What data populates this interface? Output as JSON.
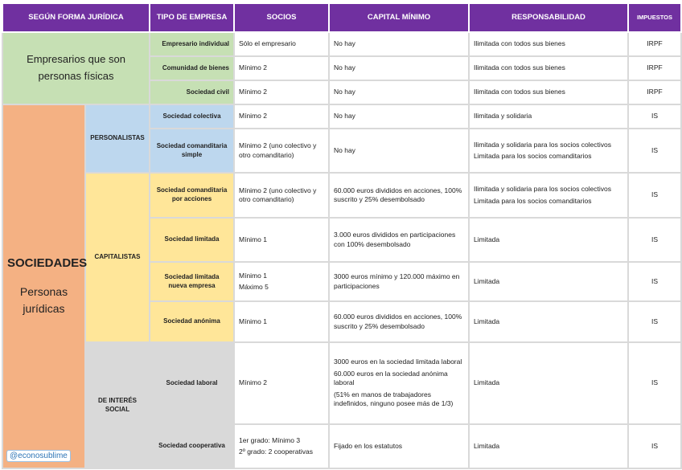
{
  "headers": [
    "SEGÚN FORMA JURÍDICA",
    "TIPO DE EMPRESA",
    "SOCIOS",
    "CAPITAL MÍNIMO",
    "RESPONSABILIDAD",
    "IMPUESTOS"
  ],
  "persona_fisica": "Empresarios que son personas físicas",
  "sociedades": {
    "title": "SOCIEDADES",
    "subtitle": "Personas jurídicas"
  },
  "groups": {
    "personalistas": "PERSONALISTAS",
    "capitalistas": "CAPITALISTAS",
    "interes_social": "DE INTERÉS SOCIAL"
  },
  "rows": [
    {
      "tipo": "Empresario individual",
      "socios": [
        "Sólo el empresario"
      ],
      "capital": [
        "No hay"
      ],
      "resp": [
        "Ilimitada con todos sus bienes"
      ],
      "imp": "IRPF"
    },
    {
      "tipo": "Comunidad de bienes",
      "socios": [
        "Mínimo 2"
      ],
      "capital": [
        "No hay"
      ],
      "resp": [
        "Ilimitada con todos sus bienes"
      ],
      "imp": "IRPF"
    },
    {
      "tipo": "Sociedad civil",
      "socios": [
        "Mínimo 2"
      ],
      "capital": [
        "No hay"
      ],
      "resp": [
        "Ilimitada con todos sus bienes"
      ],
      "imp": "IRPF"
    },
    {
      "tipo": "Sociedad colectiva",
      "socios": [
        "Mínimo 2"
      ],
      "capital": [
        "No hay"
      ],
      "resp": [
        "Ilimitada y solidaria"
      ],
      "imp": "IS"
    },
    {
      "tipo": "Sociedad comanditaria simple",
      "socios": [
        "Mínimo 2 (uno colectivo y otro comanditario)"
      ],
      "capital": [
        "No hay"
      ],
      "resp": [
        "Ilimitada y solidaria para los socios colectivos",
        "Limitada para los socios comanditarios"
      ],
      "imp": "IS"
    },
    {
      "tipo": "Sociedad comanditaria por acciones",
      "socios": [
        "Mínimo 2 (uno colectivo y otro comanditario)"
      ],
      "capital": [
        "60.000 euros divididos en acciones, 100% suscrito y 25% desembolsado"
      ],
      "resp": [
        "Ilimitada y solidaria para los socios colectivos",
        "Limitada para los socios comanditarios"
      ],
      "imp": "IS"
    },
    {
      "tipo": "Sociedad limitada",
      "socios": [
        "Mínimo 1"
      ],
      "capital": [
        "3.000 euros divididos en participaciones con 100% desembolsado"
      ],
      "resp": [
        "Limitada"
      ],
      "imp": "IS"
    },
    {
      "tipo": "Sociedad limitada nueva empresa",
      "socios": [
        "Mínimo 1",
        "Máximo 5"
      ],
      "capital": [
        "3000 euros mínimo y 120.000 máximo en participaciones"
      ],
      "resp": [
        "Limitada"
      ],
      "imp": "IS"
    },
    {
      "tipo": "Sociedad anónima",
      "socios": [
        "Mínimo 1"
      ],
      "capital": [
        "60.000 euros divididos en acciones, 100% suscrito y 25% desembolsado"
      ],
      "resp": [
        "Limitada"
      ],
      "imp": "IS"
    },
    {
      "tipo": "Sociedad laboral",
      "socios": [
        "Mínimo 2"
      ],
      "capital": [
        "3000 euros en la sociedad limitada laboral",
        "60.000 euros en la sociedad anónima laboral",
        "(51% en manos de trabajadores indefinidos, ninguno posee más de 1/3)"
      ],
      "resp": [
        "Limitada"
      ],
      "imp": "IS"
    },
    {
      "tipo": "Sociedad cooperativa",
      "socios": [
        "1er grado: Mínimo 3",
        "2º grado: 2 cooperativas"
      ],
      "capital": [
        "Fijado en los estatutos"
      ],
      "resp": [
        "Limitada"
      ],
      "imp": "IS"
    }
  ],
  "watermark": "@econosublime",
  "colors": {
    "header": "#7030a0",
    "fisicas": "#c6e0b4",
    "sociedades": "#f4b183",
    "personalistas": "#bdd7ee",
    "capitalistas": "#ffe699",
    "interes_social": "#d9d9d9"
  }
}
